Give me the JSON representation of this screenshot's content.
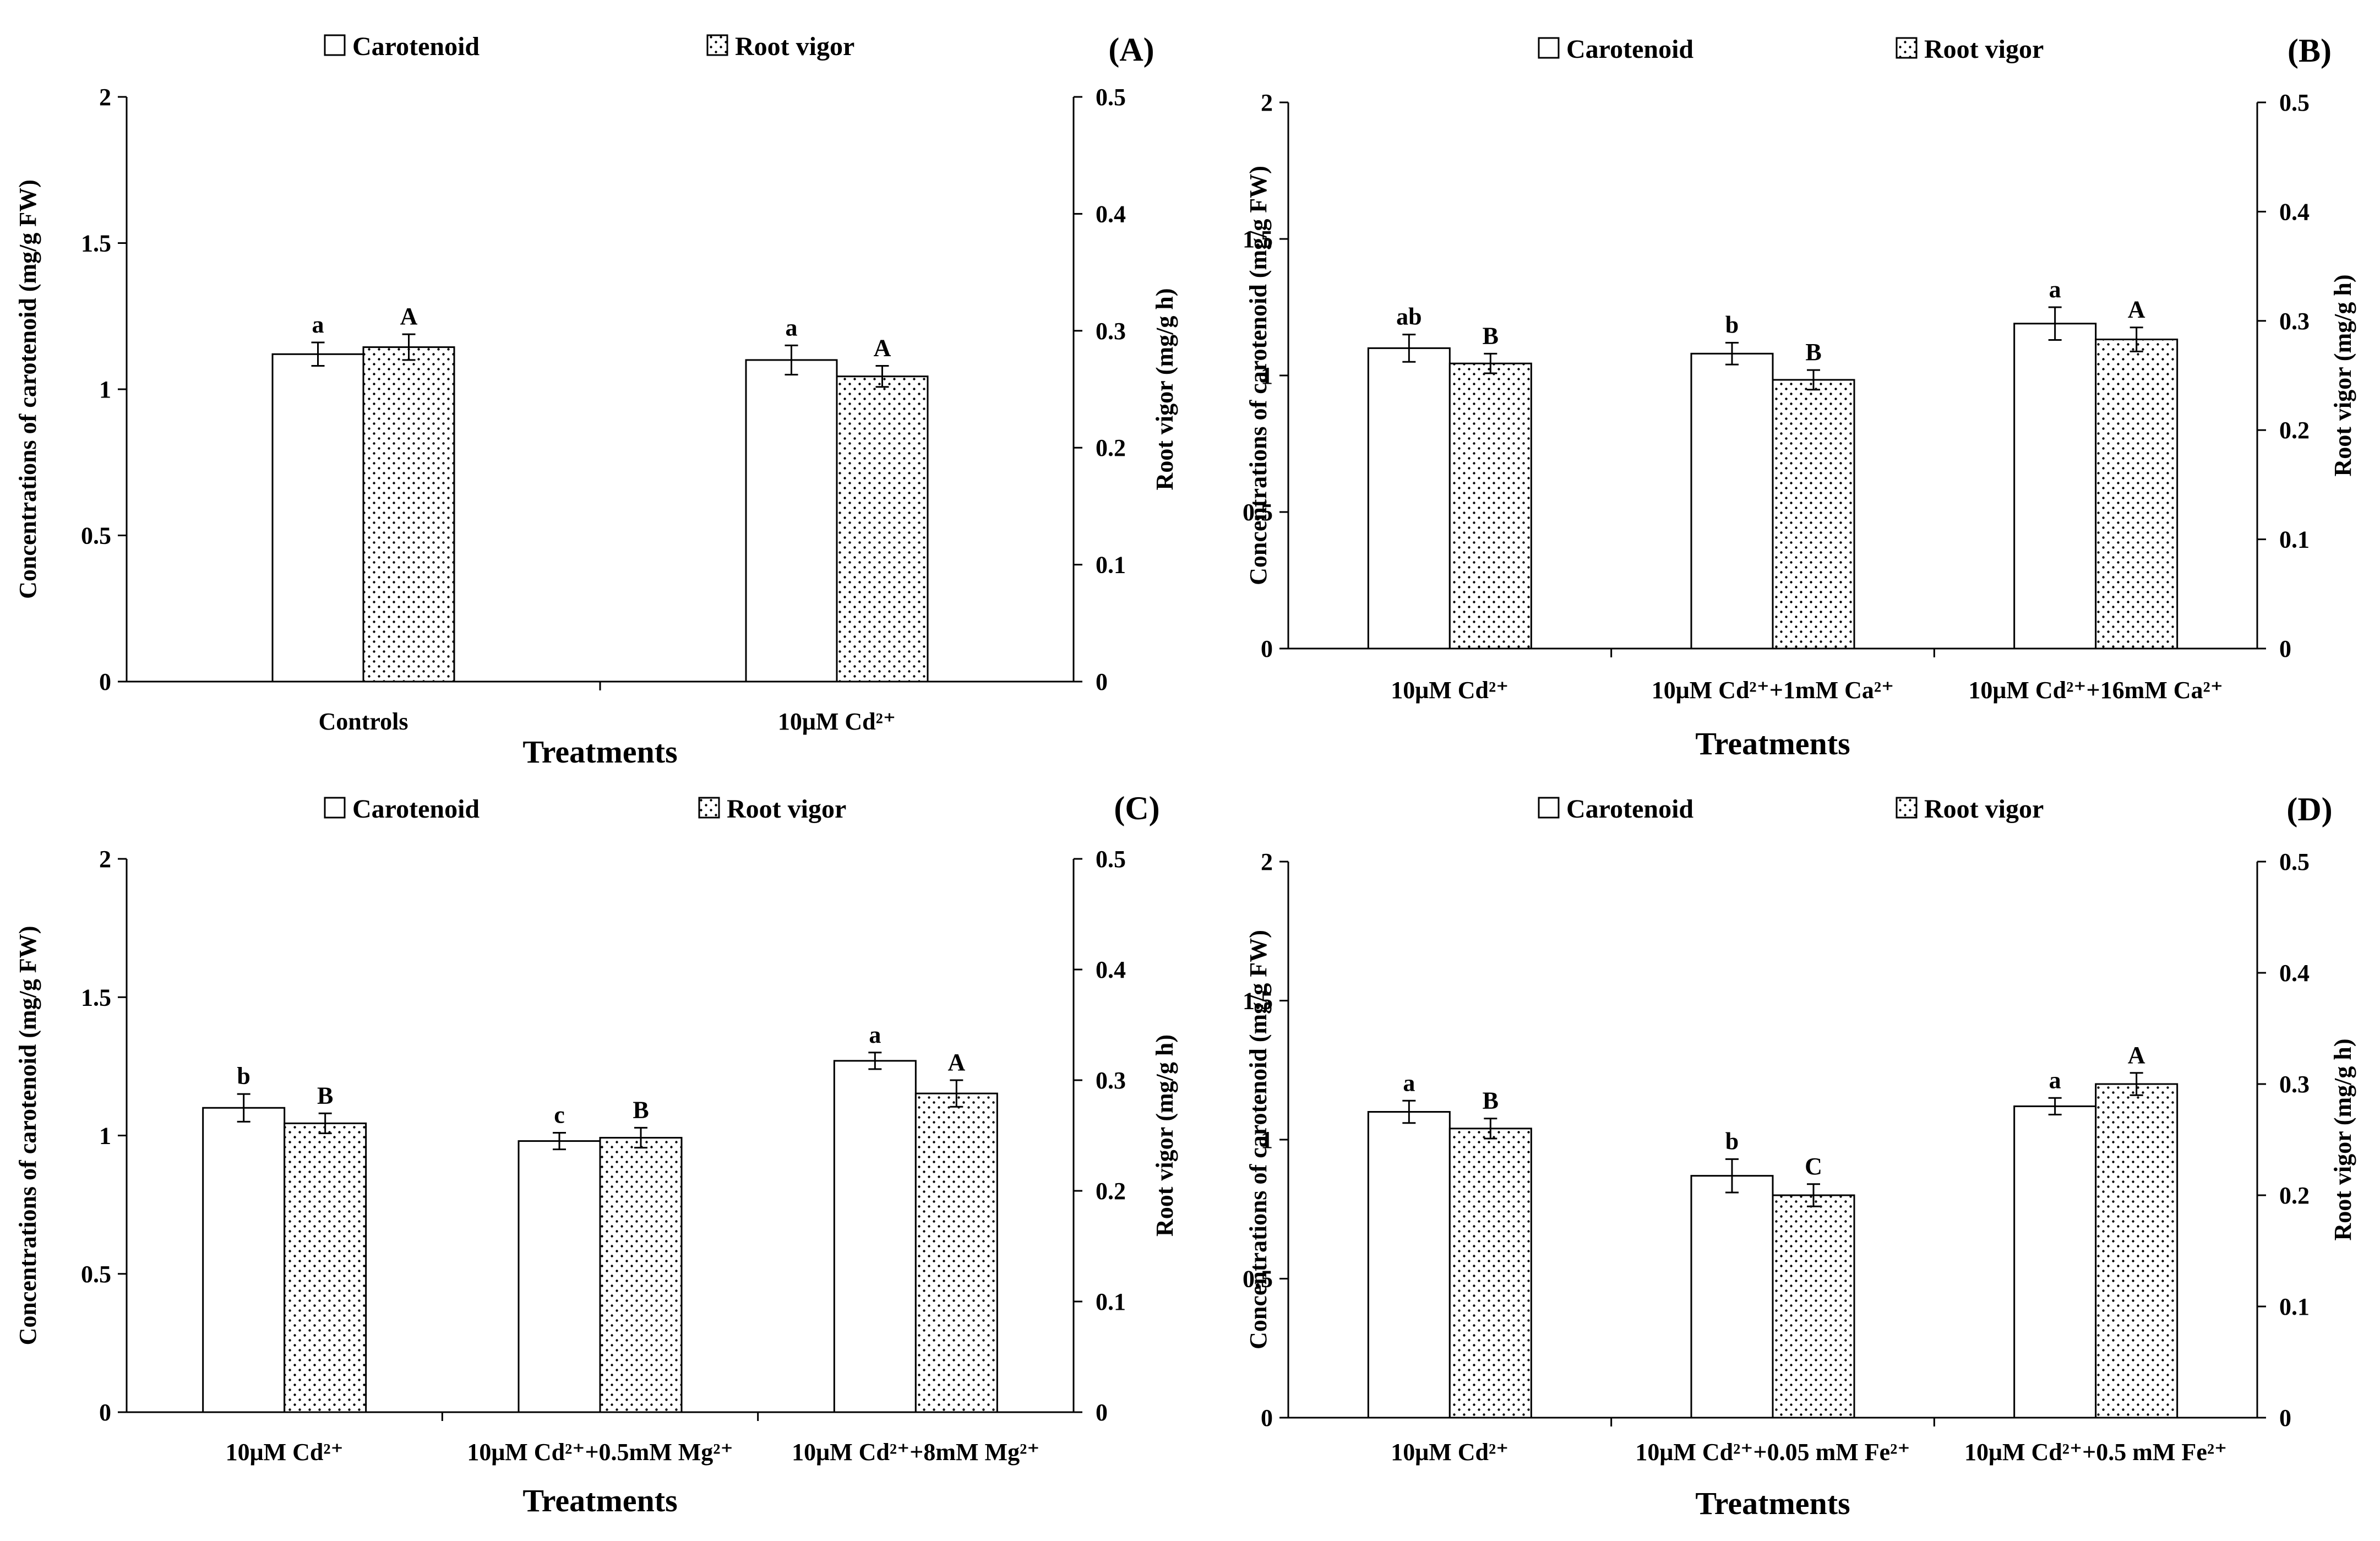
{
  "chart_data": [
    {
      "type": "bar",
      "panel": "(A)",
      "legend": [
        "Carotenoid",
        "Root vigor"
      ],
      "xlabel": "Treatments",
      "ylabel_left": "Concentrations of carotenoid (mg/g FW)",
      "ylabel_right": "Root vigor (mg/g h)",
      "ylim_left": [
        0,
        2
      ],
      "ylim_right": [
        0,
        0.5
      ],
      "yticks_left": [
        "0",
        "0.5",
        "1",
        "1.5",
        "2"
      ],
      "yticks_right": [
        "0",
        "0.1",
        "0.2",
        "0.3",
        "0.4",
        "0.5"
      ],
      "categories": [
        "Controls",
        "10μM Cd²⁺"
      ],
      "series": [
        {
          "name": "Carotenoid",
          "axis": "left",
          "values": [
            1.12,
            1.1
          ],
          "errors": [
            0.04,
            0.05
          ],
          "letters": [
            "a",
            "a"
          ]
        },
        {
          "name": "Root vigor",
          "axis": "right",
          "values": [
            0.286,
            0.261
          ],
          "errors": [
            0.011,
            0.009
          ],
          "letters": [
            "A",
            "A"
          ]
        }
      ]
    },
    {
      "type": "bar",
      "panel": "(B)",
      "legend": [
        "Carotenoid",
        "Root vigor"
      ],
      "xlabel": "Treatments",
      "ylabel_left": "Concentrations of carotenoid (mg/g FW)",
      "ylabel_right": "Root vigor (mg/g h)",
      "ylim_left": [
        0,
        2
      ],
      "ylim_right": [
        0,
        0.5
      ],
      "yticks_left": [
        "0",
        "0.5",
        "1",
        "1.5",
        "2"
      ],
      "yticks_right": [
        "0",
        "0.1",
        "0.2",
        "0.3",
        "0.4",
        "0.5"
      ],
      "categories": [
        "10μM Cd²⁺",
        "10μM Cd²⁺+1mM Ca²⁺",
        "10μM Cd²⁺+16mM Ca²⁺"
      ],
      "series": [
        {
          "name": "Carotenoid",
          "axis": "left",
          "values": [
            1.1,
            1.08,
            1.19
          ],
          "errors": [
            0.05,
            0.04,
            0.06
          ],
          "letters": [
            "ab",
            "b",
            "a"
          ]
        },
        {
          "name": "Root vigor",
          "axis": "right",
          "values": [
            0.261,
            0.246,
            0.283
          ],
          "errors": [
            0.009,
            0.009,
            0.011
          ],
          "letters": [
            "B",
            "B",
            "A"
          ]
        }
      ]
    },
    {
      "type": "bar",
      "panel": "(C)",
      "legend": [
        "Carotenoid",
        "Root vigor"
      ],
      "xlabel": "Treatments",
      "ylabel_left": "Concentrations of carotenoid (mg/g FW)",
      "ylabel_right": "Root vigor (mg/g h)",
      "ylim_left": [
        0,
        2
      ],
      "ylim_right": [
        0,
        0.5
      ],
      "yticks_left": [
        "0",
        "0.5",
        "1",
        "1.5",
        "2"
      ],
      "yticks_right": [
        "0",
        "0.1",
        "0.2",
        "0.3",
        "0.4",
        "0.5"
      ],
      "categories": [
        "10μM Cd²⁺",
        "10μM Cd²⁺+0.5mM Mg²⁺",
        "10μM Cd²⁺+8mM Mg²⁺"
      ],
      "series": [
        {
          "name": "Carotenoid",
          "axis": "left",
          "values": [
            1.1,
            0.98,
            1.27
          ],
          "errors": [
            0.05,
            0.03,
            0.03
          ],
          "letters": [
            "b",
            "c",
            "a"
          ]
        },
        {
          "name": "Root vigor",
          "axis": "right",
          "values": [
            0.261,
            0.248,
            0.288
          ],
          "errors": [
            0.009,
            0.009,
            0.012
          ],
          "letters": [
            "B",
            "B",
            "A"
          ]
        }
      ]
    },
    {
      "type": "bar",
      "panel": "(D)",
      "legend": [
        "Carotenoid",
        "Root vigor"
      ],
      "xlabel": "Treatments",
      "ylabel_left": "Concentrations of carotenoid (mg/g FW)",
      "ylabel_right": "Root vigor (mg/g h)",
      "ylim_left": [
        0,
        2
      ],
      "ylim_right": [
        0,
        0.5
      ],
      "yticks_left": [
        "0",
        "0.5",
        "1",
        "1.5",
        "2"
      ],
      "yticks_right": [
        "0",
        "0.1",
        "0.2",
        "0.3",
        "0.4",
        "0.5"
      ],
      "categories": [
        "10μM Cd²⁺",
        "10μM Cd²⁺+0.05 mM Fe²⁺",
        "10μM Cd²⁺+0.5 mM Fe²⁺"
      ],
      "series": [
        {
          "name": "Carotenoid",
          "axis": "left",
          "values": [
            1.1,
            0.87,
            1.12
          ],
          "errors": [
            0.04,
            0.06,
            0.03
          ],
          "letters": [
            "a",
            "b",
            "a"
          ]
        },
        {
          "name": "Root vigor",
          "axis": "right",
          "values": [
            0.26,
            0.2,
            0.3
          ],
          "errors": [
            0.009,
            0.01,
            0.01
          ],
          "letters": [
            "B",
            "C",
            "A"
          ]
        }
      ]
    }
  ]
}
